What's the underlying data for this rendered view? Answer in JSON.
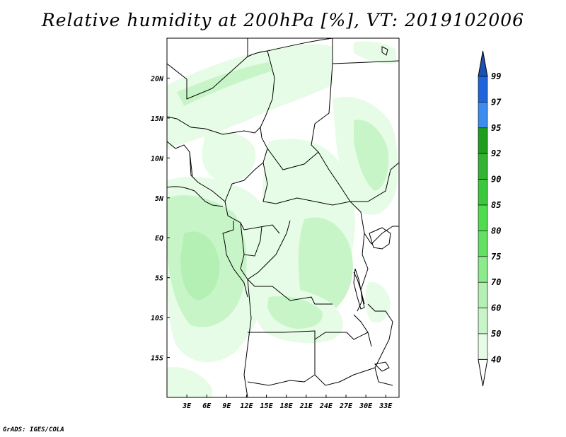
{
  "title": "Relative humidity at 200hPa [%], VT: 2019102006",
  "footer": "GrADS: IGES/COLA",
  "map": {
    "lon_range": [
      0,
      35
    ],
    "lat_range": [
      -20,
      25
    ],
    "lon_ticks": [
      "3E",
      "6E",
      "9E",
      "12E",
      "15E",
      "18E",
      "21E",
      "24E",
      "27E",
      "30E",
      "33E"
    ],
    "lat_ticks": [
      "20N",
      "15N",
      "10N",
      "5N",
      "EQ",
      "5S",
      "10S",
      "15S"
    ]
  },
  "legend": {
    "levels": [
      "99",
      "97",
      "95",
      "92",
      "90",
      "85",
      "80",
      "75",
      "70",
      "60",
      "50",
      "40"
    ],
    "colors": [
      "#1e64dc",
      "#3c8cf0",
      "#1e9e1e",
      "#32b432",
      "#3cc83c",
      "#50dc50",
      "#64e164",
      "#8ceb8c",
      "#b4f0b4",
      "#c8f5c8",
      "#e6fce6",
      "#ffffff"
    ],
    "top_arrow_color": "#1e50b4"
  }
}
